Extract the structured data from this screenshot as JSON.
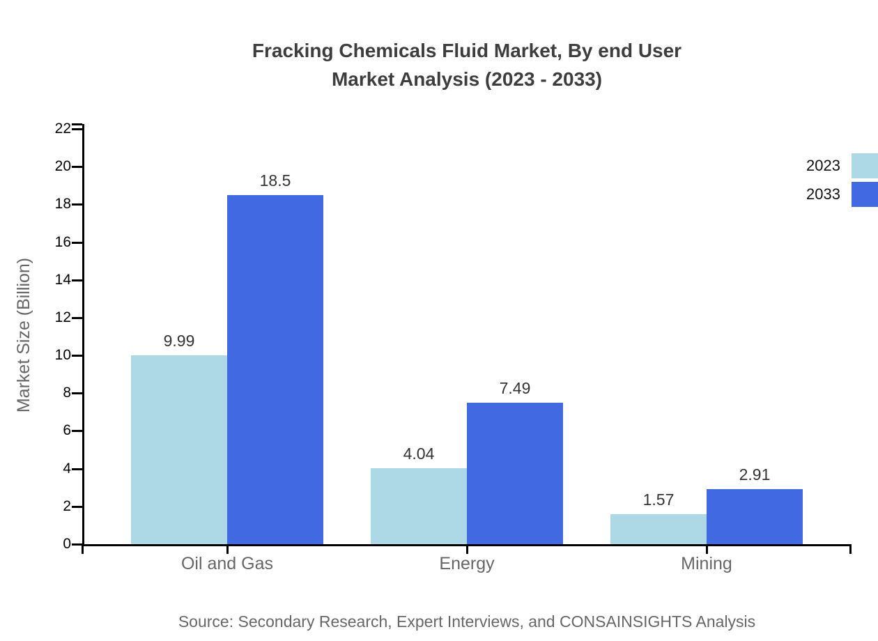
{
  "page": {
    "background_color": "#ffffff"
  },
  "title": {
    "line1": "Fracking Chemicals Fluid Market, By end User",
    "line2": "Market Analysis (2023 - 2033)"
  },
  "y_axis": {
    "label": "Market Size (Billion)",
    "tick_labels": [
      "0",
      "2",
      "4",
      "6",
      "8",
      "10",
      "12",
      "14",
      "16",
      "18",
      "20",
      "22"
    ]
  },
  "legend": {
    "entries": [
      {
        "label": "2023",
        "color": "#ADD8E6"
      },
      {
        "label": "2033",
        "color": "#4169E1"
      }
    ]
  },
  "source": {
    "text": "Source: Secondary Research, Expert Interviews, and CONSAINSIGHTS Analysis"
  },
  "chart_data": {
    "type": "bar",
    "grouped": true,
    "title": "Fracking Chemicals Fluid Market, By end User Market Analysis (2023 - 2033)",
    "categories": [
      "Oil and Gas",
      "Energy",
      "Mining"
    ],
    "series": [
      {
        "name": "2023",
        "color": "#ADD8E6",
        "values": [
          9.99,
          4.04,
          1.57
        ]
      },
      {
        "name": "2033",
        "color": "#4169E1",
        "values": [
          18.5,
          7.49,
          2.91
        ]
      }
    ],
    "value_labels": [
      "9.99",
      "18.5",
      "4.04",
      "7.49",
      "1.57",
      "2.91"
    ],
    "xlabel": "",
    "ylabel": "Market Size (Billion)",
    "ylim": [
      0,
      22
    ],
    "ytick_step": 2,
    "grid": false,
    "legend_position": "top-right-edge",
    "axis_color": "#000000",
    "label_color": "#333333"
  }
}
